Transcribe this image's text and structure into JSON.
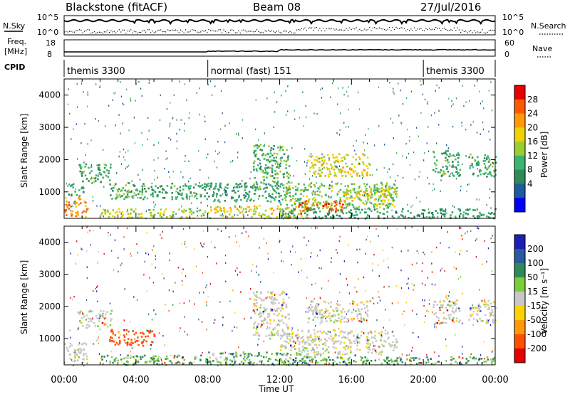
{
  "header": {
    "radar": "Blackstone (fitACF)",
    "beam": "Beam 08",
    "date": "27/Jul/2016"
  },
  "top_panels": {
    "nsky_label": "N.Sky",
    "nsky_ticks": [
      "10^5",
      "10^0"
    ],
    "nsearch_label": "N.Search",
    "nsearch_ticks": [
      "10^5",
      "10^0"
    ],
    "freq_label_1": "Freq.",
    "freq_label_2": "[MHz]",
    "freq_ticks": [
      "18",
      "8"
    ],
    "nave_label": "Nave",
    "nave_ticks": [
      "60",
      "0"
    ],
    "cpid_label": "CPID",
    "cpid_segments": [
      {
        "label": "themis 3300",
        "start_h": 0,
        "end_h": 8
      },
      {
        "label": "normal (fast) 151",
        "start_h": 8,
        "end_h": 20
      },
      {
        "label": "themis 3300",
        "start_h": 20,
        "end_h": 24
      }
    ]
  },
  "chart_data": [
    {
      "type": "heatmap",
      "name": "power",
      "ylabel": "Slant Range [km]",
      "xlabel": "Time UT",
      "y_ticks": [
        1000,
        2000,
        3000,
        4000
      ],
      "ylim": [
        180,
        4500
      ],
      "xlim": [
        0,
        24
      ],
      "x_ticks": [
        "00:00",
        "04:00",
        "08:00",
        "12:00",
        "16:00",
        "20:00",
        "00:00"
      ],
      "colorbar": {
        "label": "Power [dB]",
        "ticks": [
          28,
          24,
          20,
          16,
          12,
          8,
          4
        ],
        "colors": [
          "#e60000",
          "#ff5a00",
          "#ff9a00",
          "#f0d200",
          "#9acd32",
          "#3cb371",
          "#2e8b57",
          "#1e5aa0",
          "#0000ff"
        ]
      },
      "echo_regions": [
        {
          "t0": 0.0,
          "t1": 1.3,
          "r0": 250,
          "r1": 900,
          "power": 24
        },
        {
          "t0": 0.2,
          "t1": 1.1,
          "r0": 900,
          "r1": 1300,
          "power": 10
        },
        {
          "t0": 0.8,
          "t1": 2.6,
          "r0": 1300,
          "r1": 1900,
          "power": 10
        },
        {
          "t0": 2.5,
          "t1": 8.0,
          "r0": 800,
          "r1": 1300,
          "power": 10
        },
        {
          "t0": 2.0,
          "t1": 8.0,
          "r0": 200,
          "r1": 500,
          "power": 16
        },
        {
          "t0": 8.0,
          "t1": 13.5,
          "r0": 200,
          "r1": 600,
          "power": 18
        },
        {
          "t0": 8.0,
          "t1": 12.0,
          "r0": 700,
          "r1": 1300,
          "power": 9
        },
        {
          "t0": 10.5,
          "t1": 12.5,
          "r0": 1100,
          "r1": 2500,
          "power": 11
        },
        {
          "t0": 12.0,
          "t1": 18.5,
          "r0": 500,
          "r1": 1300,
          "power": 14
        },
        {
          "t0": 13.0,
          "t1": 15.5,
          "r0": 350,
          "r1": 750,
          "power": 27
        },
        {
          "t0": 13.5,
          "t1": 17.0,
          "r0": 1500,
          "r1": 2200,
          "power": 18
        },
        {
          "t0": 15.5,
          "t1": 18.5,
          "r0": 750,
          "r1": 1150,
          "power": 18
        },
        {
          "t0": 20.5,
          "t1": 22.0,
          "r0": 1500,
          "r1": 2300,
          "power": 10
        },
        {
          "t0": 22.5,
          "t1": 24.0,
          "r0": 1500,
          "r1": 2200,
          "power": 11
        },
        {
          "t0": 12.0,
          "t1": 24.0,
          "r0": 200,
          "r1": 500,
          "power": 9
        }
      ]
    },
    {
      "type": "heatmap",
      "name": "velocity",
      "ylabel": "Slant Range [km]",
      "xlabel": "Time UT",
      "y_ticks": [
        1000,
        2000,
        3000,
        4000
      ],
      "ylim": [
        180,
        4500
      ],
      "xlim": [
        0,
        24
      ],
      "x_ticks": [
        "00:00",
        "04:00",
        "08:00",
        "12:00",
        "16:00",
        "20:00",
        "00:00"
      ],
      "colorbar": {
        "label": "Velocity [m s⁻¹]",
        "ticks": [
          200,
          100,
          50,
          15,
          -15,
          -50,
          -100,
          -200
        ],
        "colors": [
          "#1e1eb4",
          "#2a5aa0",
          "#2e8b57",
          "#7ccd3c",
          "#c8c8c8",
          "#ffd200",
          "#ff9a00",
          "#ff5000",
          "#e60000"
        ]
      },
      "echo_regions": [
        {
          "t0": 0.0,
          "t1": 1.3,
          "r0": 250,
          "r1": 900,
          "velocity": 0
        },
        {
          "t0": 0.8,
          "t1": 2.6,
          "r0": 1300,
          "r1": 1900,
          "velocity": 0
        },
        {
          "t0": 2.5,
          "t1": 5.0,
          "r0": 800,
          "r1": 1300,
          "velocity": -120
        },
        {
          "t0": 2.0,
          "t1": 8.0,
          "r0": 200,
          "r1": 500,
          "velocity": 30
        },
        {
          "t0": 8.0,
          "t1": 13.5,
          "r0": 200,
          "r1": 600,
          "velocity": 30
        },
        {
          "t0": 10.5,
          "t1": 12.5,
          "r0": 1100,
          "r1": 2500,
          "velocity": 0
        },
        {
          "t0": 12.0,
          "t1": 18.5,
          "r0": 500,
          "r1": 1300,
          "velocity": 0
        },
        {
          "t0": 13.5,
          "t1": 17.0,
          "r0": 1500,
          "r1": 2200,
          "velocity": 0
        },
        {
          "t0": 20.5,
          "t1": 22.0,
          "r0": 1500,
          "r1": 2300,
          "velocity": 0
        },
        {
          "t0": 22.5,
          "t1": 24.0,
          "r0": 1500,
          "r1": 2200,
          "velocity": 0
        },
        {
          "t0": 12.0,
          "t1": 24.0,
          "r0": 200,
          "r1": 450,
          "velocity": 30
        }
      ]
    }
  ]
}
